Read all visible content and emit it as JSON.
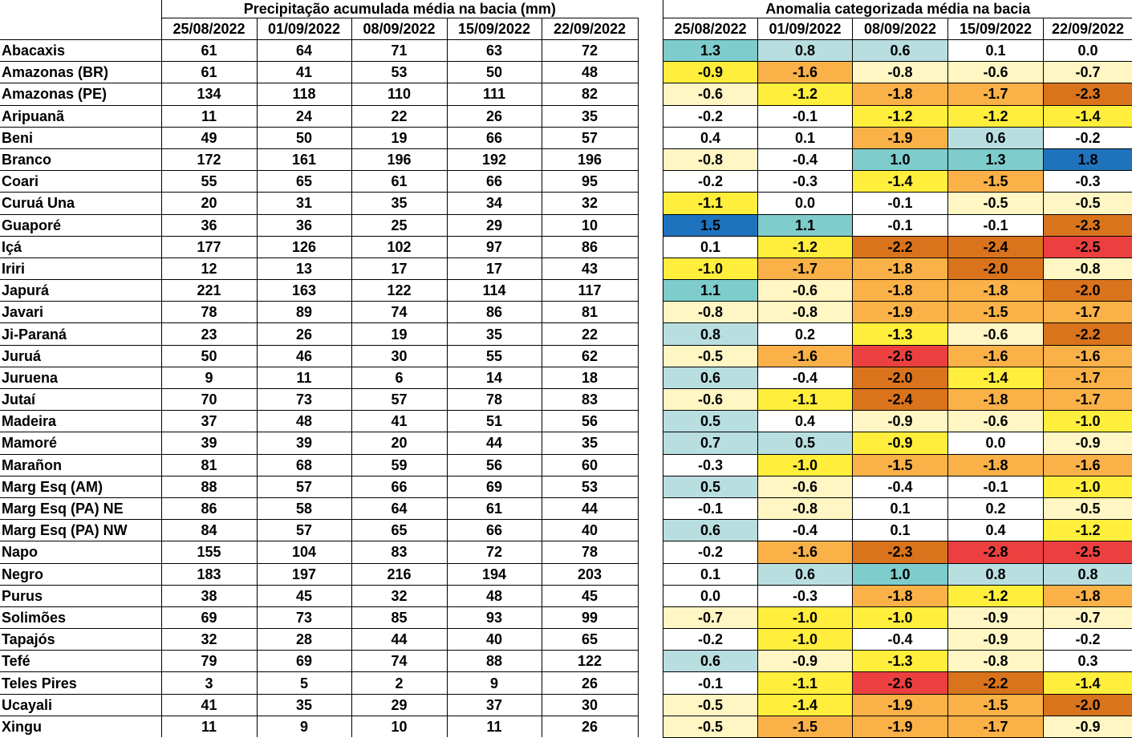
{
  "precip_title": "Precipitação acumulada média na bacia (mm)",
  "anom_title": "Anomalia categorizada média na bacia",
  "dates": [
    "25/08/2022",
    "01/09/2022",
    "08/09/2022",
    "15/09/2022",
    "22/09/2022"
  ],
  "colors": {
    "c0": "#ffffff",
    "c1": "#fff6c4",
    "c2": "#ffee3c",
    "c3": "#fab148",
    "c4": "#d9731c",
    "c5": "#ec4040",
    "c6": "#b8dee0",
    "c7": "#7ecccc",
    "c8": "#1f73bd"
  },
  "rows": [
    {
      "name": "Abacaxis",
      "precip": [
        "61",
        "64",
        "71",
        "63",
        "72"
      ],
      "anomaly": [
        "1.3",
        "0.8",
        "0.6",
        "0.1",
        "0.0"
      ],
      "colors": [
        "c7",
        "c6",
        "c6",
        "c0",
        "c0"
      ]
    },
    {
      "name": "Amazonas (BR)",
      "precip": [
        "61",
        "41",
        "53",
        "50",
        "48"
      ],
      "anomaly": [
        "-0.9",
        "-1.6",
        "-0.8",
        "-0.6",
        "-0.7"
      ],
      "colors": [
        "c2",
        "c3",
        "c1",
        "c1",
        "c1"
      ]
    },
    {
      "name": "Amazonas (PE)",
      "precip": [
        "134",
        "118",
        "110",
        "111",
        "82"
      ],
      "anomaly": [
        "-0.6",
        "-1.2",
        "-1.8",
        "-1.7",
        "-2.3"
      ],
      "colors": [
        "c1",
        "c2",
        "c3",
        "c3",
        "c4"
      ]
    },
    {
      "name": "Aripuanã",
      "precip": [
        "11",
        "24",
        "22",
        "26",
        "35"
      ],
      "anomaly": [
        "-0.2",
        "-0.1",
        "-1.2",
        "-1.2",
        "-1.4"
      ],
      "colors": [
        "c0",
        "c0",
        "c2",
        "c2",
        "c2"
      ]
    },
    {
      "name": "Beni",
      "precip": [
        "49",
        "50",
        "19",
        "66",
        "57"
      ],
      "anomaly": [
        "0.4",
        "0.1",
        "-1.9",
        "0.6",
        "-0.2"
      ],
      "colors": [
        "c0",
        "c0",
        "c3",
        "c6",
        "c0"
      ]
    },
    {
      "name": "Branco",
      "precip": [
        "172",
        "161",
        "196",
        "192",
        "196"
      ],
      "anomaly": [
        "-0.8",
        "-0.4",
        "1.0",
        "1.3",
        "1.8"
      ],
      "colors": [
        "c1",
        "c0",
        "c7",
        "c7",
        "c8"
      ]
    },
    {
      "name": "Coari",
      "precip": [
        "55",
        "65",
        "61",
        "66",
        "95"
      ],
      "anomaly": [
        "-0.2",
        "-0.3",
        "-1.4",
        "-1.5",
        "-0.3"
      ],
      "colors": [
        "c0",
        "c0",
        "c2",
        "c3",
        "c0"
      ]
    },
    {
      "name": "Curuá Una",
      "precip": [
        "20",
        "31",
        "35",
        "34",
        "32"
      ],
      "anomaly": [
        "-1.1",
        "0.0",
        "-0.1",
        "-0.5",
        "-0.5"
      ],
      "colors": [
        "c2",
        "c0",
        "c0",
        "c1",
        "c1"
      ]
    },
    {
      "name": "Guaporé",
      "precip": [
        "36",
        "36",
        "25",
        "29",
        "10"
      ],
      "anomaly": [
        "1.5",
        "1.1",
        "-0.1",
        "-0.1",
        "-2.3"
      ],
      "colors": [
        "c8",
        "c7",
        "c0",
        "c0",
        "c4"
      ]
    },
    {
      "name": "Içá",
      "precip": [
        "177",
        "126",
        "102",
        "97",
        "86"
      ],
      "anomaly": [
        "0.1",
        "-1.2",
        "-2.2",
        "-2.4",
        "-2.5"
      ],
      "colors": [
        "c0",
        "c2",
        "c4",
        "c4",
        "c5"
      ]
    },
    {
      "name": "Iriri",
      "precip": [
        "12",
        "13",
        "17",
        "17",
        "43"
      ],
      "anomaly": [
        "-1.0",
        "-1.7",
        "-1.8",
        "-2.0",
        "-0.8"
      ],
      "colors": [
        "c2",
        "c3",
        "c3",
        "c4",
        "c1"
      ]
    },
    {
      "name": "Japurá",
      "precip": [
        "221",
        "163",
        "122",
        "114",
        "117"
      ],
      "anomaly": [
        "1.1",
        "-0.6",
        "-1.8",
        "-1.8",
        "-2.0"
      ],
      "colors": [
        "c7",
        "c1",
        "c3",
        "c3",
        "c4"
      ]
    },
    {
      "name": "Javari",
      "precip": [
        "78",
        "89",
        "74",
        "86",
        "81"
      ],
      "anomaly": [
        "-0.8",
        "-0.8",
        "-1.9",
        "-1.5",
        "-1.7"
      ],
      "colors": [
        "c1",
        "c1",
        "c3",
        "c3",
        "c3"
      ]
    },
    {
      "name": "Ji-Paraná",
      "precip": [
        "23",
        "26",
        "19",
        "35",
        "22"
      ],
      "anomaly": [
        "0.8",
        "0.2",
        "-1.3",
        "-0.6",
        "-2.2"
      ],
      "colors": [
        "c6",
        "c0",
        "c2",
        "c1",
        "c4"
      ]
    },
    {
      "name": "Juruá",
      "precip": [
        "50",
        "46",
        "30",
        "55",
        "62"
      ],
      "anomaly": [
        "-0.5",
        "-1.6",
        "-2.6",
        "-1.6",
        "-1.6"
      ],
      "colors": [
        "c1",
        "c3",
        "c5",
        "c3",
        "c3"
      ]
    },
    {
      "name": "Juruena",
      "precip": [
        "9",
        "11",
        "6",
        "14",
        "18"
      ],
      "anomaly": [
        "0.6",
        "-0.4",
        "-2.0",
        "-1.4",
        "-1.7"
      ],
      "colors": [
        "c6",
        "c0",
        "c4",
        "c2",
        "c3"
      ]
    },
    {
      "name": "Jutaí",
      "precip": [
        "70",
        "73",
        "57",
        "78",
        "83"
      ],
      "anomaly": [
        "-0.6",
        "-1.1",
        "-2.4",
        "-1.8",
        "-1.7"
      ],
      "colors": [
        "c1",
        "c2",
        "c4",
        "c3",
        "c3"
      ]
    },
    {
      "name": "Madeira",
      "precip": [
        "37",
        "48",
        "41",
        "51",
        "56"
      ],
      "anomaly": [
        "0.5",
        "0.4",
        "-0.9",
        "-0.6",
        "-1.0"
      ],
      "colors": [
        "c6",
        "c0",
        "c1",
        "c1",
        "c2"
      ]
    },
    {
      "name": "Mamoré",
      "precip": [
        "39",
        "39",
        "20",
        "44",
        "35"
      ],
      "anomaly": [
        "0.7",
        "0.5",
        "-0.9",
        "0.0",
        "-0.9"
      ],
      "colors": [
        "c6",
        "c6",
        "c2",
        "c0",
        "c1"
      ]
    },
    {
      "name": "Marañon",
      "precip": [
        "81",
        "68",
        "59",
        "56",
        "60"
      ],
      "anomaly": [
        "-0.3",
        "-1.0",
        "-1.5",
        "-1.8",
        "-1.6"
      ],
      "colors": [
        "c0",
        "c2",
        "c3",
        "c3",
        "c3"
      ]
    },
    {
      "name": "Marg Esq (AM)",
      "precip": [
        "88",
        "57",
        "66",
        "69",
        "53"
      ],
      "anomaly": [
        "0.5",
        "-0.6",
        "-0.4",
        "-0.1",
        "-1.0"
      ],
      "colors": [
        "c6",
        "c1",
        "c0",
        "c0",
        "c2"
      ]
    },
    {
      "name": "Marg Esq (PA) NE",
      "precip": [
        "86",
        "58",
        "64",
        "61",
        "44"
      ],
      "anomaly": [
        "-0.1",
        "-0.8",
        "0.1",
        "0.2",
        "-0.5"
      ],
      "colors": [
        "c0",
        "c1",
        "c0",
        "c0",
        "c1"
      ]
    },
    {
      "name": "Marg Esq (PA) NW",
      "precip": [
        "84",
        "57",
        "65",
        "66",
        "40"
      ],
      "anomaly": [
        "0.6",
        "-0.4",
        "0.1",
        "0.4",
        "-1.2"
      ],
      "colors": [
        "c6",
        "c0",
        "c0",
        "c0",
        "c2"
      ]
    },
    {
      "name": "Napo",
      "precip": [
        "155",
        "104",
        "83",
        "72",
        "78"
      ],
      "anomaly": [
        "-0.2",
        "-1.6",
        "-2.3",
        "-2.8",
        "-2.5"
      ],
      "colors": [
        "c0",
        "c3",
        "c4",
        "c5",
        "c5"
      ]
    },
    {
      "name": "Negro",
      "precip": [
        "183",
        "197",
        "216",
        "194",
        "203"
      ],
      "anomaly": [
        "0.1",
        "0.6",
        "1.0",
        "0.8",
        "0.8"
      ],
      "colors": [
        "c0",
        "c6",
        "c7",
        "c6",
        "c6"
      ]
    },
    {
      "name": "Purus",
      "precip": [
        "38",
        "45",
        "32",
        "48",
        "45"
      ],
      "anomaly": [
        "0.0",
        "-0.3",
        "-1.8",
        "-1.2",
        "-1.8"
      ],
      "colors": [
        "c0",
        "c0",
        "c3",
        "c2",
        "c3"
      ]
    },
    {
      "name": "Solimões",
      "precip": [
        "69",
        "73",
        "85",
        "93",
        "99"
      ],
      "anomaly": [
        "-0.7",
        "-1.0",
        "-1.0",
        "-0.9",
        "-0.7"
      ],
      "colors": [
        "c1",
        "c2",
        "c2",
        "c1",
        "c1"
      ]
    },
    {
      "name": "Tapajós",
      "precip": [
        "32",
        "28",
        "44",
        "40",
        "65"
      ],
      "anomaly": [
        "-0.2",
        "-1.0",
        "-0.4",
        "-0.9",
        "-0.2"
      ],
      "colors": [
        "c0",
        "c2",
        "c0",
        "c1",
        "c0"
      ]
    },
    {
      "name": "Tefé",
      "precip": [
        "79",
        "69",
        "74",
        "88",
        "122"
      ],
      "anomaly": [
        "0.6",
        "-0.9",
        "-1.3",
        "-0.8",
        "0.3"
      ],
      "colors": [
        "c6",
        "c1",
        "c2",
        "c1",
        "c0"
      ]
    },
    {
      "name": "Teles Pires",
      "precip": [
        "3",
        "5",
        "2",
        "9",
        "26"
      ],
      "anomaly": [
        "-0.1",
        "-1.1",
        "-2.6",
        "-2.2",
        "-1.4"
      ],
      "colors": [
        "c0",
        "c2",
        "c5",
        "c4",
        "c2"
      ]
    },
    {
      "name": "Ucayali",
      "precip": [
        "41",
        "35",
        "29",
        "37",
        "30"
      ],
      "anomaly": [
        "-0.5",
        "-1.4",
        "-1.9",
        "-1.5",
        "-2.0"
      ],
      "colors": [
        "c1",
        "c2",
        "c3",
        "c3",
        "c4"
      ]
    },
    {
      "name": "Xingu",
      "precip": [
        "11",
        "9",
        "10",
        "11",
        "26"
      ],
      "anomaly": [
        "-0.5",
        "-1.5",
        "-1.9",
        "-1.7",
        "-0.9"
      ],
      "colors": [
        "c1",
        "c3",
        "c3",
        "c3",
        "c1"
      ]
    }
  ]
}
